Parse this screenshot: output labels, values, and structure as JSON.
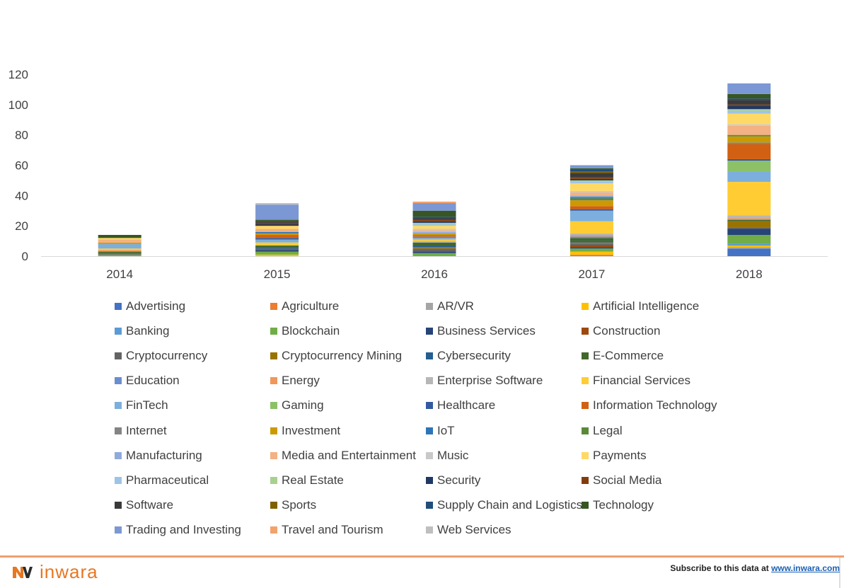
{
  "chart_data": {
    "type": "bar",
    "stacked": true,
    "title": "",
    "xlabel": "",
    "ylabel": "",
    "ylim": [
      0,
      120
    ],
    "yticks": [
      0,
      20,
      40,
      60,
      80,
      100,
      120
    ],
    "grid": false,
    "legend_position": "bottom",
    "categories": [
      "2014",
      "2015",
      "2016",
      "2017",
      "2018"
    ],
    "series": [
      {
        "name": "Advertising",
        "color": "#4472c4",
        "values": [
          0,
          0,
          0,
          0,
          5
        ]
      },
      {
        "name": "Agriculture",
        "color": "#ed7d31",
        "values": [
          0,
          0,
          0,
          1,
          0
        ]
      },
      {
        "name": "AR/VR",
        "color": "#a5a5a5",
        "values": [
          0,
          0,
          0,
          0,
          1
        ]
      },
      {
        "name": "Artificial Intelligence",
        "color": "#ffc000",
        "values": [
          0,
          1,
          0,
          2,
          1
        ]
      },
      {
        "name": "Banking",
        "color": "#5b9bd5",
        "values": [
          0,
          0,
          0,
          0,
          1
        ]
      },
      {
        "name": "Blockchain",
        "color": "#70ad47",
        "values": [
          1,
          2,
          2,
          2,
          6
        ]
      },
      {
        "name": "Business Services",
        "color": "#264478",
        "values": [
          0,
          1,
          1,
          1,
          4
        ]
      },
      {
        "name": "Construction",
        "color": "#9e480e",
        "values": [
          0,
          0,
          0,
          1,
          0
        ]
      },
      {
        "name": "Cryptocurrency",
        "color": "#636363",
        "values": [
          1,
          1,
          2,
          1,
          1
        ]
      },
      {
        "name": "Cryptocurrency Mining",
        "color": "#997300",
        "values": [
          0,
          0,
          1,
          1,
          4
        ]
      },
      {
        "name": "Cybersecurity",
        "color": "#255e91",
        "values": [
          0,
          1,
          1,
          1,
          0
        ]
      },
      {
        "name": "E-Commerce",
        "color": "#43682b",
        "values": [
          1,
          1,
          2,
          2,
          1
        ]
      },
      {
        "name": "Education",
        "color": "#698ed0",
        "values": [
          0,
          0,
          0,
          1,
          0
        ]
      },
      {
        "name": "Energy",
        "color": "#f1975a",
        "values": [
          1,
          0,
          0,
          1,
          1
        ]
      },
      {
        "name": "Enterprise Software",
        "color": "#b7b7b7",
        "values": [
          0,
          0,
          1,
          1,
          2
        ]
      },
      {
        "name": "Financial Services",
        "color": "#ffcd33",
        "values": [
          1,
          2,
          1,
          8,
          22
        ]
      },
      {
        "name": "FinTech",
        "color": "#7cafdd",
        "values": [
          3,
          2,
          1,
          7,
          7
        ]
      },
      {
        "name": "Gaming",
        "color": "#8cc168",
        "values": [
          0,
          0,
          0,
          0,
          7
        ]
      },
      {
        "name": "Healthcare",
        "color": "#335aa1",
        "values": [
          0,
          1,
          0,
          1,
          1
        ]
      },
      {
        "name": "Information Technology",
        "color": "#d26012",
        "values": [
          0,
          2,
          1,
          2,
          10
        ]
      },
      {
        "name": "Internet",
        "color": "#848484",
        "values": [
          0,
          0,
          1,
          0,
          1
        ]
      },
      {
        "name": "Investment",
        "color": "#cc9a00",
        "values": [
          1,
          1,
          1,
          4,
          4
        ]
      },
      {
        "name": "IoT",
        "color": "#2e75b6",
        "values": [
          0,
          1,
          0,
          1,
          0
        ]
      },
      {
        "name": "Legal",
        "color": "#5a8a38",
        "values": [
          0,
          0,
          0,
          1,
          1
        ]
      },
      {
        "name": "Manufacturing",
        "color": "#8faadc",
        "values": [
          0,
          0,
          1,
          1,
          0
        ]
      },
      {
        "name": "Media and Entertainment",
        "color": "#f4b183",
        "values": [
          2,
          2,
          1,
          2,
          6
        ]
      },
      {
        "name": "Music",
        "color": "#c9c9c9",
        "values": [
          0,
          0,
          1,
          1,
          1
        ]
      },
      {
        "name": "Payments",
        "color": "#ffd966",
        "values": [
          1,
          2,
          2,
          5,
          7
        ]
      },
      {
        "name": "Pharmaceutical",
        "color": "#9dc3e6",
        "values": [
          0,
          0,
          1,
          1,
          2
        ]
      },
      {
        "name": "Real Estate",
        "color": "#a9d18e",
        "values": [
          0,
          0,
          1,
          1,
          1
        ]
      },
      {
        "name": "Security",
        "color": "#1f3864",
        "values": [
          0,
          1,
          1,
          1,
          2
        ]
      },
      {
        "name": "Social Media",
        "color": "#843c0c",
        "values": [
          0,
          1,
          1,
          1,
          1
        ]
      },
      {
        "name": "Software",
        "color": "#3a3a3a",
        "values": [
          0,
          1,
          1,
          3,
          3
        ]
      },
      {
        "name": "Sports",
        "color": "#7f6000",
        "values": [
          0,
          0,
          0,
          1,
          0
        ]
      },
      {
        "name": "Supply Chain and Logistics",
        "color": "#1f4e79",
        "values": [
          0,
          0,
          1,
          1,
          1
        ]
      },
      {
        "name": "Technology",
        "color": "#375623",
        "values": [
          2,
          1,
          4,
          1,
          3
        ]
      },
      {
        "name": "Trading and Investing",
        "color": "#7b97d4",
        "values": [
          0,
          10,
          5,
          2,
          7
        ]
      },
      {
        "name": "Travel and Tourism",
        "color": "#f4a26c",
        "values": [
          0,
          0,
          1,
          0,
          0
        ]
      },
      {
        "name": "Web Services",
        "color": "#bfbfbf",
        "values": [
          0,
          1,
          0,
          0,
          0
        ]
      }
    ]
  },
  "footer": {
    "logo_text": "inwara",
    "subscribe_text": "Subscribe to this data at ",
    "subscribe_link": "www.inwara.com",
    "accent_color": "#e87722"
  }
}
